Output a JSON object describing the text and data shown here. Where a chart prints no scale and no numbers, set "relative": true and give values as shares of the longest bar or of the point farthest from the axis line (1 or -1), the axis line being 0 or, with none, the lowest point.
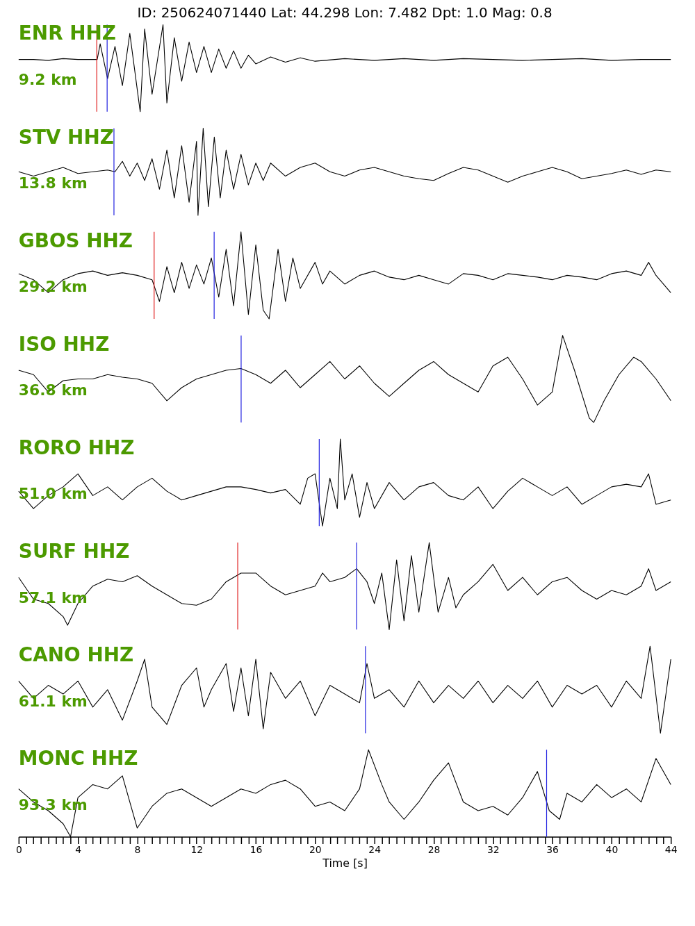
{
  "chart_data": [
    {
      "type": "line",
      "title": "ID: 250624071440 Lat:  44.298 Lon:   7.482 Dpt:     1.0 Mag:   0.8",
      "relative": true,
      "xlim": [
        0,
        44
      ],
      "tick_labels": false,
      "annotations": [
        "ENR HHZ",
        "9.2 km"
      ],
      "x": [
        0,
        1,
        2,
        3,
        4,
        5,
        5.3,
        5.5,
        6,
        6.5,
        7,
        7.5,
        8.2,
        8.5,
        9,
        9.74,
        10,
        10.5,
        11,
        11.5,
        12,
        12.5,
        13,
        13.5,
        14,
        14.5,
        15,
        15.5,
        16,
        17,
        18,
        19,
        20,
        22,
        24,
        26,
        28,
        30,
        32,
        34,
        36,
        38,
        40,
        42,
        44
      ],
      "series": [
        {
          "color": "#000000",
          "values": [
            0.6,
            0.6,
            0.59,
            0.61,
            0.6,
            0.6,
            0.6,
            0.78,
            0.38,
            0.75,
            0.3,
            0.9,
            0,
            0.95,
            0.2,
            1,
            0.1,
            0.85,
            0.35,
            0.8,
            0.45,
            0.75,
            0.45,
            0.72,
            0.5,
            0.7,
            0.5,
            0.65,
            0.55,
            0.63,
            0.57,
            0.62,
            0.58,
            0.61,
            0.59,
            0.61,
            0.59,
            0.61,
            0.6,
            0.59,
            0.6,
            0.61,
            0.59,
            0.6,
            0.6
          ]
        }
      ],
      "ref_lines": [
        {
          "axis": "x",
          "value": 5.27,
          "color": "#e02020"
        },
        {
          "axis": "x",
          "value": 5.97,
          "color": "#2020e0"
        }
      ]
    },
    {
      "type": "line",
      "relative": true,
      "xlim": [
        0,
        44
      ],
      "tick_labels": false,
      "annotations": [
        "STV HHZ",
        "13.8 km"
      ],
      "x": [
        0,
        1,
        2,
        3,
        4,
        5,
        6,
        6.5,
        7,
        7.5,
        8,
        8.5,
        9,
        9.5,
        10,
        10.5,
        11,
        11.5,
        12,
        12.1,
        12.45,
        12.8,
        13.2,
        13.6,
        14,
        14.5,
        15,
        15.5,
        16,
        16.5,
        17,
        18,
        19,
        20,
        21,
        22,
        23,
        24,
        25,
        26,
        27,
        28,
        29,
        30,
        31,
        32,
        33,
        34,
        35,
        36,
        37,
        38,
        39,
        40,
        41,
        42,
        43,
        44
      ],
      "series": [
        {
          "color": "#000000",
          "values": [
            0.5,
            0.45,
            0.5,
            0.55,
            0.48,
            0.5,
            0.52,
            0.5,
            0.62,
            0.45,
            0.6,
            0.4,
            0.65,
            0.3,
            0.75,
            0.2,
            0.8,
            0.15,
            0.85,
            0,
            1,
            0.1,
            0.9,
            0.2,
            0.75,
            0.3,
            0.7,
            0.35,
            0.6,
            0.4,
            0.6,
            0.45,
            0.55,
            0.6,
            0.5,
            0.45,
            0.52,
            0.55,
            0.5,
            0.45,
            0.42,
            0.4,
            0.48,
            0.55,
            0.52,
            0.45,
            0.38,
            0.45,
            0.5,
            0.55,
            0.5,
            0.42,
            0.45,
            0.48,
            0.52,
            0.47,
            0.52,
            0.5
          ]
        }
      ],
      "ref_lines": [
        {
          "axis": "x",
          "value": 6.43,
          "color": "#2020e0"
        }
      ]
    },
    {
      "type": "line",
      "relative": true,
      "xlim": [
        0,
        44
      ],
      "tick_labels": false,
      "annotations": [
        "GBOS HHZ",
        "29.2 km"
      ],
      "x": [
        0,
        1,
        2,
        3,
        4,
        5,
        6,
        7,
        8,
        9,
        9.5,
        10,
        10.5,
        11,
        11.5,
        12,
        12.5,
        13,
        13.5,
        14,
        14.5,
        15,
        15.5,
        16,
        16.5,
        16.9,
        17.5,
        18,
        18.5,
        19,
        20,
        20.5,
        21,
        22,
        23,
        24,
        25,
        26,
        27,
        28,
        29,
        30,
        31,
        32,
        33,
        34,
        35,
        36,
        37,
        38,
        39,
        40,
        41,
        42,
        42.5,
        43,
        44
      ],
      "series": [
        {
          "color": "#000000",
          "values": [
            0.52,
            0.45,
            0.3,
            0.45,
            0.52,
            0.55,
            0.5,
            0.53,
            0.5,
            0.45,
            0.2,
            0.6,
            0.3,
            0.65,
            0.35,
            0.62,
            0.4,
            0.7,
            0.25,
            0.8,
            0.15,
            1,
            0.05,
            0.85,
            0.1,
            0,
            0.8,
            0.2,
            0.7,
            0.35,
            0.65,
            0.4,
            0.55,
            0.4,
            0.5,
            0.55,
            0.48,
            0.45,
            0.5,
            0.45,
            0.4,
            0.52,
            0.5,
            0.45,
            0.52,
            0.5,
            0.48,
            0.45,
            0.5,
            0.48,
            0.45,
            0.52,
            0.55,
            0.5,
            0.65,
            0.5,
            0.3
          ]
        }
      ],
      "ref_lines": [
        {
          "axis": "x",
          "value": 9.14,
          "color": "#e02020"
        },
        {
          "axis": "x",
          "value": 13.19,
          "color": "#2020e0"
        }
      ]
    },
    {
      "type": "line",
      "relative": true,
      "xlim": [
        0,
        44
      ],
      "tick_labels": false,
      "annotations": [
        "ISO HHZ",
        "36.8 km"
      ],
      "x": [
        0,
        1,
        2,
        3,
        4,
        5,
        6,
        7,
        8,
        9,
        10,
        11,
        12,
        13,
        14,
        15,
        16,
        17,
        18,
        19,
        20,
        21,
        22,
        23,
        24,
        25,
        26,
        27,
        28,
        29,
        30,
        31,
        32,
        33,
        34,
        35,
        36,
        36.7,
        37.5,
        38.5,
        38.8,
        39.5,
        40.5,
        41.5,
        42,
        43,
        44
      ],
      "series": [
        {
          "color": "#000000",
          "values": [
            0.6,
            0.55,
            0.35,
            0.48,
            0.5,
            0.5,
            0.55,
            0.52,
            0.5,
            0.45,
            0.25,
            0.4,
            0.5,
            0.55,
            0.6,
            0.62,
            0.55,
            0.45,
            0.6,
            0.4,
            0.55,
            0.7,
            0.5,
            0.65,
            0.45,
            0.3,
            0.45,
            0.6,
            0.7,
            0.55,
            0.45,
            0.35,
            0.65,
            0.75,
            0.5,
            0.2,
            0.35,
            1,
            0.6,
            0.05,
            0,
            0.25,
            0.55,
            0.75,
            0.7,
            0.5,
            0.25
          ]
        }
      ],
      "ref_lines": [
        {
          "axis": "x",
          "value": 15.01,
          "color": "#2020e0"
        }
      ]
    },
    {
      "type": "line",
      "relative": true,
      "xlim": [
        0,
        44
      ],
      "tick_labels": false,
      "annotations": [
        "RORO HHZ",
        "51.0 km"
      ],
      "x": [
        0,
        1,
        2,
        3,
        4,
        5,
        6,
        7,
        8,
        9,
        10,
        11,
        12,
        13,
        14,
        15,
        16,
        17,
        18,
        19,
        19.5,
        20,
        20.5,
        21,
        21.5,
        21.7,
        22,
        22.5,
        23,
        23.5,
        24,
        25,
        26,
        27,
        28,
        29,
        30,
        31,
        32,
        33,
        34,
        35,
        36,
        37,
        38,
        39,
        40,
        41,
        42,
        42.5,
        43,
        44
      ],
      "series": [
        {
          "color": "#000000",
          "values": [
            0.4,
            0.2,
            0.35,
            0.45,
            0.6,
            0.35,
            0.45,
            0.3,
            0.45,
            0.55,
            0.4,
            0.3,
            0.35,
            0.4,
            0.45,
            0.45,
            0.42,
            0.38,
            0.42,
            0.25,
            0.55,
            0.6,
            0,
            0.55,
            0.2,
            1,
            0.3,
            0.6,
            0.1,
            0.5,
            0.2,
            0.5,
            0.3,
            0.45,
            0.5,
            0.35,
            0.3,
            0.45,
            0.2,
            0.4,
            0.55,
            0.45,
            0.35,
            0.45,
            0.25,
            0.35,
            0.45,
            0.48,
            0.45,
            0.6,
            0.25,
            0.3
          ]
        }
      ],
      "ref_lines": [
        {
          "axis": "x",
          "value": 20.28,
          "color": "#2020e0"
        }
      ]
    },
    {
      "type": "line",
      "relative": true,
      "xlim": [
        0,
        44
      ],
      "tick_labels": false,
      "annotations": [
        "SURF HHZ",
        "57.1 km"
      ],
      "x": [
        0,
        1,
        2,
        3,
        3.3,
        4,
        5,
        6,
        7,
        8,
        9,
        10,
        11,
        12,
        13,
        14,
        15,
        16,
        17,
        18,
        19,
        20,
        20.5,
        21,
        22,
        22.8,
        23.5,
        24,
        24.5,
        25,
        25.5,
        26,
        26.5,
        27,
        27.7,
        28.3,
        29,
        29.5,
        30,
        31,
        32,
        33,
        34,
        35,
        36,
        37,
        38,
        39,
        40,
        41,
        42,
        42.5,
        43,
        44
      ],
      "series": [
        {
          "color": "#000000",
          "values": [
            0.6,
            0.35,
            0.3,
            0.15,
            0.05,
            0.3,
            0.5,
            0.58,
            0.55,
            0.62,
            0.5,
            0.4,
            0.3,
            0.28,
            0.35,
            0.55,
            0.65,
            0.65,
            0.5,
            0.4,
            0.45,
            0.5,
            0.65,
            0.55,
            0.6,
            0.7,
            0.55,
            0.3,
            0.65,
            0,
            0.8,
            0.1,
            0.85,
            0.2,
            1,
            0.2,
            0.6,
            0.25,
            0.4,
            0.55,
            0.75,
            0.45,
            0.6,
            0.4,
            0.55,
            0.6,
            0.45,
            0.35,
            0.45,
            0.4,
            0.5,
            0.7,
            0.45,
            0.55
          ]
        }
      ],
      "ref_lines": [
        {
          "axis": "x",
          "value": 14.78,
          "color": "#e02020"
        },
        {
          "axis": "x",
          "value": 22.8,
          "color": "#2020e0"
        }
      ]
    },
    {
      "type": "line",
      "relative": true,
      "xlim": [
        0,
        44
      ],
      "tick_labels": false,
      "annotations": [
        "CANO HHZ",
        "61.1 km"
      ],
      "x": [
        0,
        1,
        2,
        3,
        4,
        5,
        6,
        7,
        8,
        8.5,
        9,
        10,
        11,
        12,
        12.5,
        13,
        14,
        14.5,
        15,
        15.5,
        16,
        16.5,
        17,
        18,
        19,
        20,
        21,
        22,
        23,
        23.5,
        24,
        25,
        26,
        27,
        28,
        29,
        30,
        31,
        32,
        33,
        34,
        35,
        36,
        37,
        38,
        39,
        40,
        41,
        42,
        42.6,
        43.3,
        44
      ],
      "series": [
        {
          "color": "#000000",
          "values": [
            0.6,
            0.4,
            0.55,
            0.45,
            0.6,
            0.3,
            0.5,
            0.15,
            0.6,
            0.85,
            0.3,
            0.1,
            0.55,
            0.75,
            0.3,
            0.5,
            0.8,
            0.25,
            0.75,
            0.2,
            0.85,
            0.05,
            0.7,
            0.4,
            0.6,
            0.2,
            0.55,
            0.45,
            0.35,
            0.8,
            0.4,
            0.5,
            0.3,
            0.6,
            0.35,
            0.55,
            0.4,
            0.6,
            0.35,
            0.55,
            0.4,
            0.6,
            0.3,
            0.55,
            0.45,
            0.55,
            0.3,
            0.6,
            0.4,
            1,
            0,
            0.85
          ]
        }
      ],
      "ref_lines": [
        {
          "axis": "x",
          "value": 23.4,
          "color": "#2020e0"
        }
      ]
    },
    {
      "type": "line",
      "relative": true,
      "xlim": [
        0,
        44
      ],
      "xlabel": "Time [s]",
      "tick_labels": "x",
      "annotations": [
        "MONC HHZ",
        "93.3 km"
      ],
      "xticks": [
        0,
        {
          "value": 0.5,
          "label": null
        },
        {
          "value": 1,
          "label": null
        },
        {
          "value": 1.5,
          "label": null
        },
        {
          "value": 2,
          "label": null
        },
        {
          "value": 2.5,
          "label": null
        },
        {
          "value": 3,
          "label": null
        },
        {
          "value": 3.5,
          "label": null
        },
        4,
        {
          "value": 4.5,
          "label": null
        },
        {
          "value": 5,
          "label": null
        },
        {
          "value": 5.5,
          "label": null
        },
        {
          "value": 6,
          "label": null
        },
        {
          "value": 6.5,
          "label": null
        },
        {
          "value": 7,
          "label": null
        },
        {
          "value": 7.5,
          "label": null
        },
        8,
        {
          "value": 8.5,
          "label": null
        },
        {
          "value": 9,
          "label": null
        },
        {
          "value": 9.5,
          "label": null
        },
        {
          "value": 10,
          "label": null
        },
        {
          "value": 10.5,
          "label": null
        },
        {
          "value": 11,
          "label": null
        },
        {
          "value": 11.5,
          "label": null
        },
        12,
        {
          "value": 12.5,
          "label": null
        },
        {
          "value": 13,
          "label": null
        },
        {
          "value": 13.5,
          "label": null
        },
        {
          "value": 14,
          "label": null
        },
        {
          "value": 14.5,
          "label": null
        },
        {
          "value": 15,
          "label": null
        },
        {
          "value": 15.5,
          "label": null
        },
        16,
        {
          "value": 16.5,
          "label": null
        },
        {
          "value": 17,
          "label": null
        },
        {
          "value": 17.5,
          "label": null
        },
        {
          "value": 18,
          "label": null
        },
        {
          "value": 18.5,
          "label": null
        },
        {
          "value": 19,
          "label": null
        },
        {
          "value": 19.5,
          "label": null
        },
        20,
        {
          "value": 20.5,
          "label": null
        },
        {
          "value": 21,
          "label": null
        },
        {
          "value": 21.5,
          "label": null
        },
        {
          "value": 22,
          "label": null
        },
        {
          "value": 22.5,
          "label": null
        },
        {
          "value": 23,
          "label": null
        },
        {
          "value": 23.5,
          "label": null
        },
        24,
        {
          "value": 24.5,
          "label": null
        },
        {
          "value": 25,
          "label": null
        },
        {
          "value": 25.5,
          "label": null
        },
        {
          "value": 26,
          "label": null
        },
        {
          "value": 26.5,
          "label": null
        },
        {
          "value": 27,
          "label": null
        },
        {
          "value": 27.5,
          "label": null
        },
        28,
        {
          "value": 28.5,
          "label": null
        },
        {
          "value": 29,
          "label": null
        },
        {
          "value": 29.5,
          "label": null
        },
        {
          "value": 30,
          "label": null
        },
        {
          "value": 30.5,
          "label": null
        },
        {
          "value": 31,
          "label": null
        },
        {
          "value": 31.5,
          "label": null
        },
        32,
        {
          "value": 32.5,
          "label": null
        },
        {
          "value": 33,
          "label": null
        },
        {
          "value": 33.5,
          "label": null
        },
        {
          "value": 34,
          "label": null
        },
        {
          "value": 34.5,
          "label": null
        },
        {
          "value": 35,
          "label": null
        },
        {
          "value": 35.5,
          "label": null
        },
        36,
        {
          "value": 36.5,
          "label": null
        },
        {
          "value": 37,
          "label": null
        },
        {
          "value": 37.5,
          "label": null
        },
        {
          "value": 38,
          "label": null
        },
        {
          "value": 38.5,
          "label": null
        },
        {
          "value": 39,
          "label": null
        },
        {
          "value": 39.5,
          "label": null
        },
        40,
        {
          "value": 40.5,
          "label": null
        },
        {
          "value": 41,
          "label": null
        },
        {
          "value": 41.5,
          "label": null
        },
        {
          "value": 42,
          "label": null
        },
        {
          "value": 42.5,
          "label": null
        },
        {
          "value": 43,
          "label": null
        },
        {
          "value": 43.5,
          "label": null
        },
        44
      ],
      "x": [
        0,
        1,
        2,
        3,
        3.5,
        4,
        5,
        6,
        7,
        8,
        9,
        10,
        11,
        12,
        13,
        14,
        15,
        16,
        17,
        18,
        19,
        20,
        21,
        22,
        23,
        23.6,
        24.5,
        25,
        26,
        27,
        28,
        29,
        30,
        31,
        32,
        33,
        34,
        35,
        35.8,
        36.5,
        37,
        38,
        39,
        40,
        41,
        42,
        43,
        44
      ],
      "series": [
        {
          "color": "#000000",
          "values": [
            0.55,
            0.4,
            0.3,
            0.15,
            0,
            0.45,
            0.6,
            0.55,
            0.7,
            0.1,
            0.35,
            0.5,
            0.55,
            0.45,
            0.35,
            0.45,
            0.55,
            0.5,
            0.6,
            0.65,
            0.55,
            0.35,
            0.4,
            0.3,
            0.55,
            1,
            0.6,
            0.4,
            0.2,
            0.4,
            0.65,
            0.85,
            0.4,
            0.3,
            0.35,
            0.25,
            0.45,
            0.75,
            0.3,
            0.2,
            0.5,
            0.4,
            0.6,
            0.45,
            0.55,
            0.4,
            0.9,
            0.6
          ]
        }
      ],
      "ref_lines": [
        {
          "axis": "x",
          "value": 35.62,
          "color": "#2020e0"
        }
      ]
    }
  ]
}
